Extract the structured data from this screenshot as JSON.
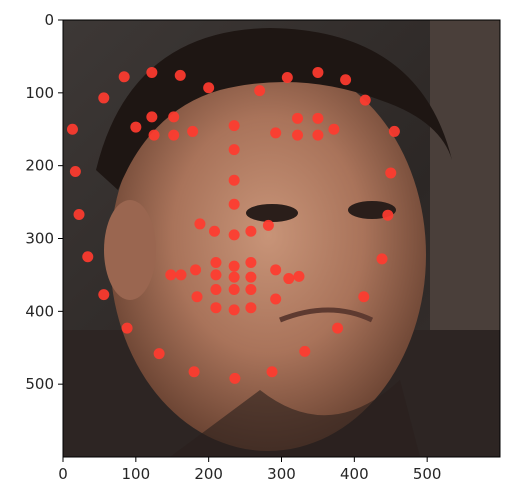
{
  "chart_data": {
    "type": "scatter",
    "title": "",
    "xlabel": "",
    "ylabel": "",
    "xlim": [
      0,
      600
    ],
    "ylim": [
      600,
      0
    ],
    "x_ticks": [
      0,
      100,
      200,
      300,
      400,
      500
    ],
    "y_ticks": [
      0,
      100,
      200,
      300,
      400,
      500
    ],
    "x_tick_labels": [
      "0",
      "100",
      "200",
      "300",
      "400",
      "500"
    ],
    "y_tick_labels": [
      "0",
      "100",
      "200",
      "300",
      "400",
      "500"
    ],
    "background_image": "photo of a man's face with a frown expression",
    "marker_color": "#ff3b2f",
    "points": [
      [
        84,
        78
      ],
      [
        122,
        72
      ],
      [
        161,
        76
      ],
      [
        200,
        93
      ],
      [
        270,
        97
      ],
      [
        308,
        79
      ],
      [
        350,
        72
      ],
      [
        388,
        82
      ],
      [
        56,
        107
      ],
      [
        415,
        110
      ],
      [
        13,
        150
      ],
      [
        100,
        147
      ],
      [
        122,
        133
      ],
      [
        152,
        133
      ],
      [
        125,
        158
      ],
      [
        152,
        158
      ],
      [
        178,
        153
      ],
      [
        235,
        145
      ],
      [
        292,
        155
      ],
      [
        322,
        135
      ],
      [
        350,
        135
      ],
      [
        322,
        158
      ],
      [
        350,
        158
      ],
      [
        372,
        150
      ],
      [
        455,
        153
      ],
      [
        235,
        178
      ],
      [
        17,
        208
      ],
      [
        235,
        220
      ],
      [
        450,
        210
      ],
      [
        235,
        253
      ],
      [
        22,
        267
      ],
      [
        446,
        268
      ],
      [
        188,
        280
      ],
      [
        208,
        290
      ],
      [
        235,
        295
      ],
      [
        258,
        290
      ],
      [
        282,
        282
      ],
      [
        34,
        325
      ],
      [
        210,
        333
      ],
      [
        235,
        338
      ],
      [
        258,
        333
      ],
      [
        292,
        343
      ],
      [
        438,
        328
      ],
      [
        148,
        350
      ],
      [
        162,
        350
      ],
      [
        182,
        343
      ],
      [
        210,
        350
      ],
      [
        235,
        353
      ],
      [
        258,
        353
      ],
      [
        310,
        355
      ],
      [
        324,
        352
      ],
      [
        210,
        370
      ],
      [
        235,
        370
      ],
      [
        258,
        370
      ],
      [
        56,
        377
      ],
      [
        184,
        380
      ],
      [
        292,
        383
      ],
      [
        413,
        380
      ],
      [
        210,
        395
      ],
      [
        235,
        398
      ],
      [
        258,
        395
      ],
      [
        88,
        423
      ],
      [
        377,
        423
      ],
      [
        132,
        458
      ],
      [
        332,
        455
      ],
      [
        180,
        483
      ],
      [
        236,
        492
      ],
      [
        287,
        483
      ]
    ]
  }
}
